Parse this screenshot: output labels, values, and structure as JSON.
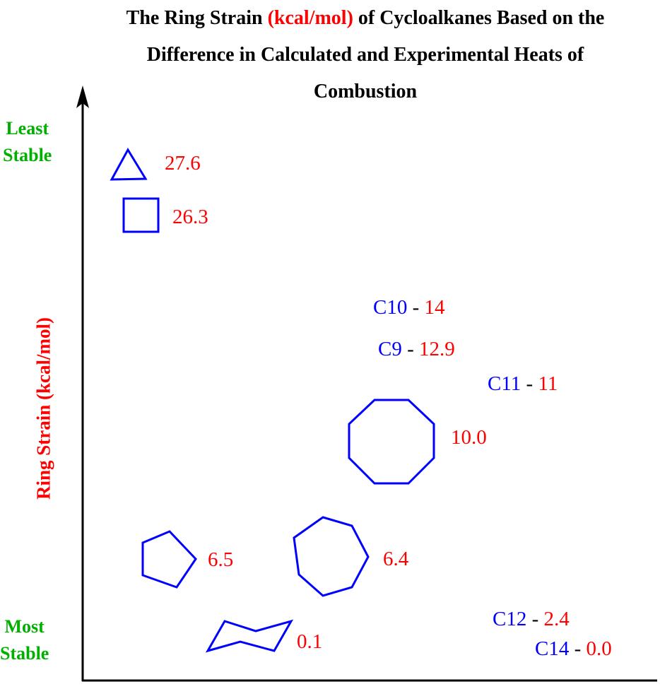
{
  "chart_data": {
    "type": "scatter",
    "title": {
      "part1": "The Ring Strain",
      "part2_highlight": "(kcal/mol)",
      "part3": "of Cycloalkanes Based on the",
      "line2": "Difference in Calculated and Experimental Heats of",
      "line3": "Combustion"
    },
    "ylabel": "Ring Strain (kcal/mol)",
    "xlabel": "",
    "y_top_label": [
      "Least",
      "Stable"
    ],
    "y_bottom_label": [
      "Most",
      "Stable"
    ],
    "ylim": [
      0,
      28
    ],
    "grid": false,
    "colors": {
      "shape": "#0000ff",
      "value": "#ff0000",
      "stability": "#00b000",
      "axis": "#000000"
    },
    "points": [
      {
        "ring": "cyclopropane",
        "carbons": 3,
        "shape": "triangle",
        "strain": 27.6,
        "label": "27.6"
      },
      {
        "ring": "cyclobutane",
        "carbons": 4,
        "shape": "square",
        "strain": 26.3,
        "label": "26.3"
      },
      {
        "ring": "cyclopentane",
        "carbons": 5,
        "shape": "pentagon",
        "strain": 6.5,
        "label": "6.5"
      },
      {
        "ring": "cyclohexane",
        "carbons": 6,
        "shape": "chair",
        "strain": 0.1,
        "label": "0.1"
      },
      {
        "ring": "cycloheptane",
        "carbons": 7,
        "shape": "heptagon",
        "strain": 6.4,
        "label": "6.4"
      },
      {
        "ring": "cyclooctane",
        "carbons": 8,
        "shape": "octagon",
        "strain": 10.0,
        "label": "10.0"
      },
      {
        "ring": "cyclononane",
        "carbons": 9,
        "shape": "text",
        "name": "C9",
        "strain": 12.9,
        "label": "12.9"
      },
      {
        "ring": "cyclodecane",
        "carbons": 10,
        "shape": "text",
        "name": "C10",
        "strain": 14,
        "label": "14"
      },
      {
        "ring": "cycloundecane",
        "carbons": 11,
        "shape": "text",
        "name": "C11",
        "strain": 11,
        "label": "11"
      },
      {
        "ring": "cyclododecane",
        "carbons": 12,
        "shape": "text",
        "name": "C12",
        "strain": 2.4,
        "label": "2.4"
      },
      {
        "ring": "cyclotetradecane",
        "carbons": 14,
        "shape": "text",
        "name": "C14",
        "strain": 0.0,
        "label": "0.0"
      }
    ],
    "separator": "-"
  }
}
